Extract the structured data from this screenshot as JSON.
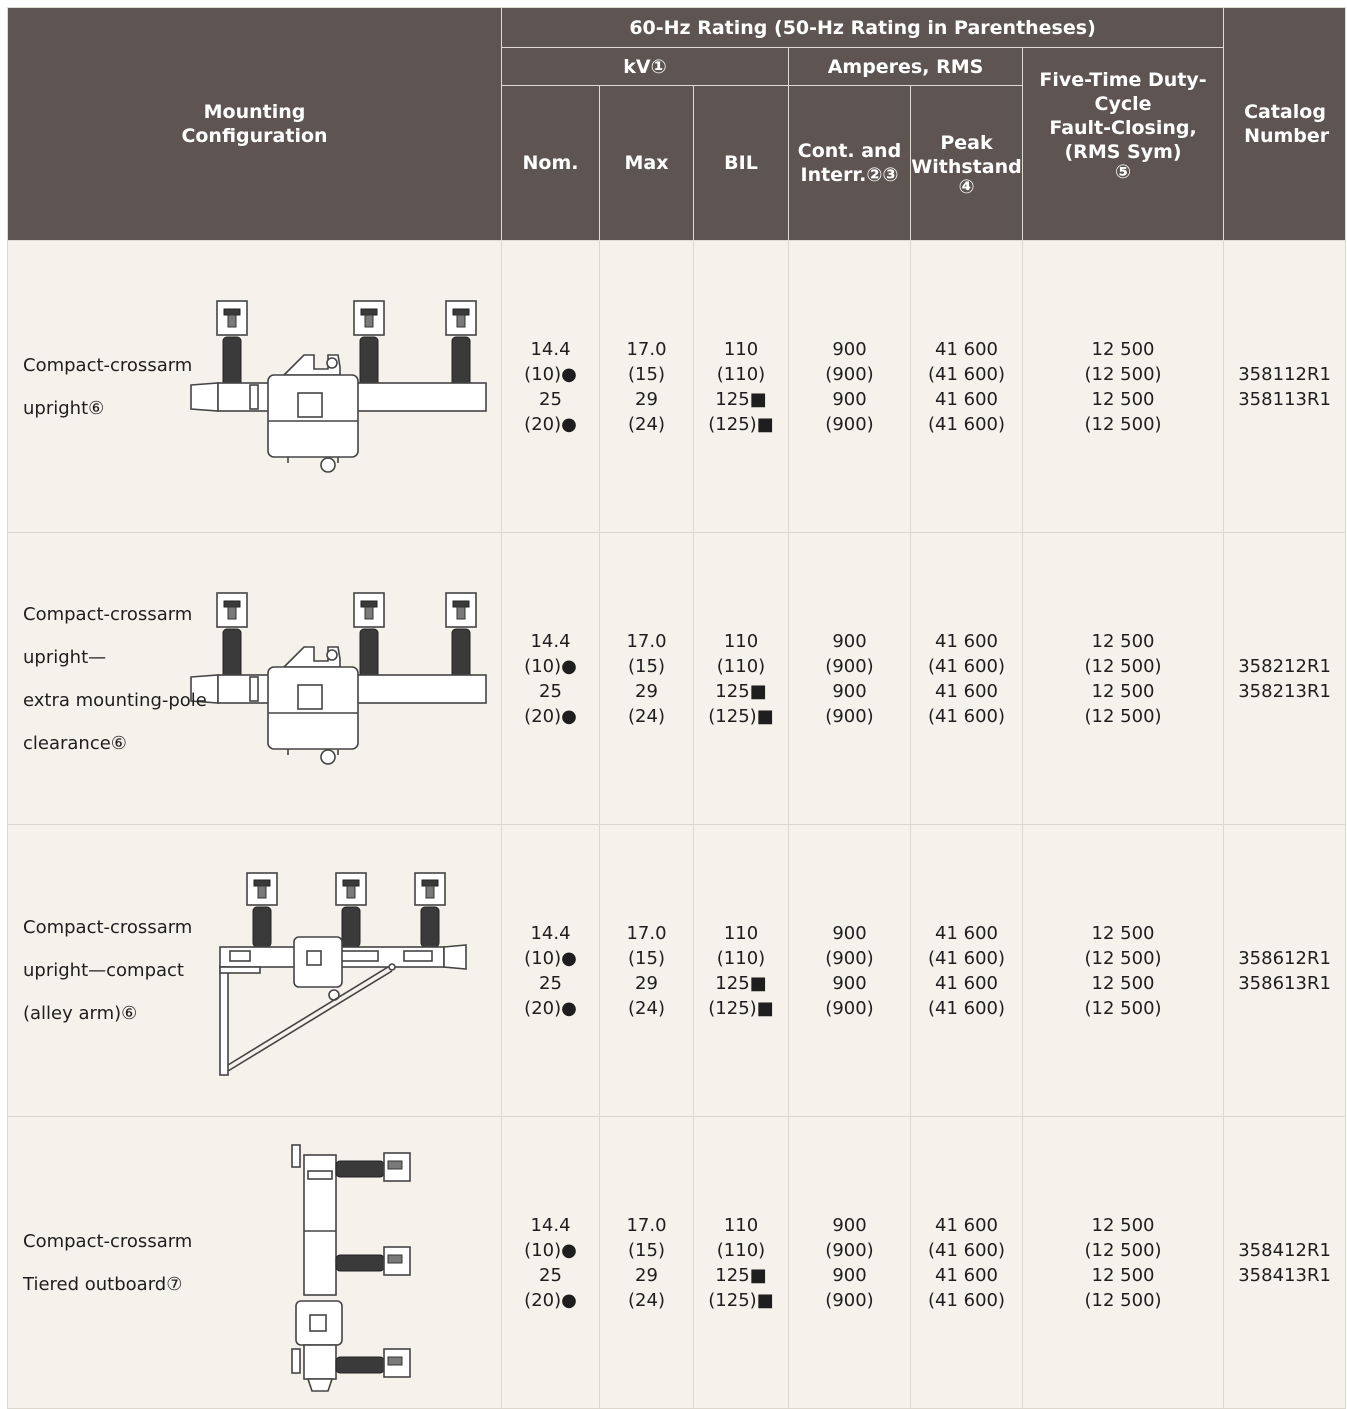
{
  "header": {
    "rating_title": "60-Hz Rating (50-Hz Rating in Parentheses)",
    "mounting": "Mounting Configuration",
    "kv": "kV①",
    "amperes": "Amperes, RMS",
    "nom": "Nom.",
    "max": "Max",
    "bil": "BIL",
    "cont_interr": "Cont. and Interr.②③",
    "peak_line1": "Peak",
    "peak_line2": "Withstand",
    "peak_line3": "④",
    "fault_line1": "Five-Time Duty-Cycle",
    "fault_line2": "Fault-Closing,",
    "fault_line3": "(RMS Sym)",
    "fault_line4": "⑤",
    "catalog": "Catalog Number"
  },
  "rows": [
    {
      "mounting": [
        "Compact-crossarm",
        "upright⑥"
      ],
      "nom": [
        "14.4",
        "(10)●",
        "25",
        "(20)●"
      ],
      "max": [
        "17.0",
        "(15)",
        "29",
        "(24)"
      ],
      "bil": [
        "110",
        "(110)",
        "125■",
        "(125)■"
      ],
      "cont": [
        "900",
        "(900)",
        "900",
        "(900)"
      ],
      "peak": [
        "41 600",
        "(41 600)",
        "41 600",
        "(41 600)"
      ],
      "fault": [
        "12 500",
        "(12 500)",
        "12 500",
        "(12 500)"
      ],
      "catalog": [
        "358112R1",
        "358113R1"
      ]
    },
    {
      "mounting": [
        "Compact-crossarm",
        "upright—",
        "extra mounting-pole",
        "clearance⑥"
      ],
      "nom": [
        "14.4",
        "(10)●",
        "25",
        "(20)●"
      ],
      "max": [
        "17.0",
        "(15)",
        "29",
        "(24)"
      ],
      "bil": [
        "110",
        "(110)",
        "125■",
        "(125)■"
      ],
      "cont": [
        "900",
        "(900)",
        "900",
        "(900)"
      ],
      "peak": [
        "41 600",
        "(41 600)",
        "41 600",
        "(41 600)"
      ],
      "fault": [
        "12 500",
        "(12 500)",
        "12 500",
        "(12 500)"
      ],
      "catalog": [
        "358212R1",
        "358213R1"
      ]
    },
    {
      "mounting": [
        "Compact-crossarm",
        "upright—compact",
        "(alley arm)⑥"
      ],
      "nom": [
        "14.4",
        "(10)●",
        "25",
        "(20)●"
      ],
      "max": [
        "17.0",
        "(15)",
        "29",
        "(24)"
      ],
      "bil": [
        "110",
        "(110)",
        "125■",
        "(125)■"
      ],
      "cont": [
        "900",
        "(900)",
        "900",
        "(900)"
      ],
      "peak": [
        "41 600",
        "(41 600)",
        "41 600",
        "(41 600)"
      ],
      "fault": [
        "12 500",
        "(12 500)",
        "12 500",
        "(12 500)"
      ],
      "catalog": [
        "358612R1",
        "358613R1"
      ]
    },
    {
      "mounting": [
        "Compact-crossarm",
        "Tiered outboard⑦"
      ],
      "nom": [
        "14.4",
        "(10)●",
        "25",
        "(20)●"
      ],
      "max": [
        "17.0",
        "(15)",
        "29",
        "(24)"
      ],
      "bil": [
        "110",
        "(110)",
        "125■",
        "(125)■"
      ],
      "cont": [
        "900",
        "(900)",
        "900",
        "(900)"
      ],
      "peak": [
        "41 600",
        "(41 600)",
        "41 600",
        "(41 600)"
      ],
      "fault": [
        "12 500",
        "(12 500)",
        "12 500",
        "(12 500)"
      ],
      "catalog": [
        "358412R1",
        "358413R1"
      ]
    }
  ]
}
